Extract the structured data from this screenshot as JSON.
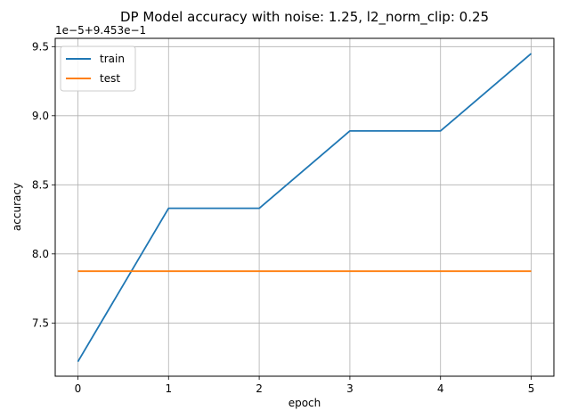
{
  "chart_data": {
    "type": "line",
    "title": "DP Model accuracy with noise: 1.25, l2_norm_clip: 0.25",
    "xlabel": "epoch",
    "ylabel": "accuracy",
    "offset_label": "1e−5+9.453e−1",
    "x": [
      0,
      1,
      2,
      3,
      4,
      5
    ],
    "xticks": [
      0,
      1,
      2,
      3,
      4,
      5
    ],
    "xtick_labels": [
      "0",
      "1",
      "2",
      "3",
      "4",
      "5"
    ],
    "yticks": [
      7.5,
      8.0,
      8.5,
      9.0,
      9.5
    ],
    "ytick_labels": [
      "7.5",
      "8.0",
      "8.5",
      "9.0",
      "9.5"
    ],
    "xlim": [
      -0.25,
      5.25
    ],
    "ylim": [
      7.115,
      9.56
    ],
    "grid": true,
    "legend_position": "upper-left",
    "series": [
      {
        "name": "train",
        "color": "#1f77b4",
        "values": [
          7.22,
          8.33,
          8.33,
          8.89,
          8.89,
          9.45
        ]
      },
      {
        "name": "test",
        "color": "#ff7f0e",
        "values": [
          7.875,
          7.875,
          7.875,
          7.875,
          7.875,
          7.875
        ]
      }
    ]
  }
}
